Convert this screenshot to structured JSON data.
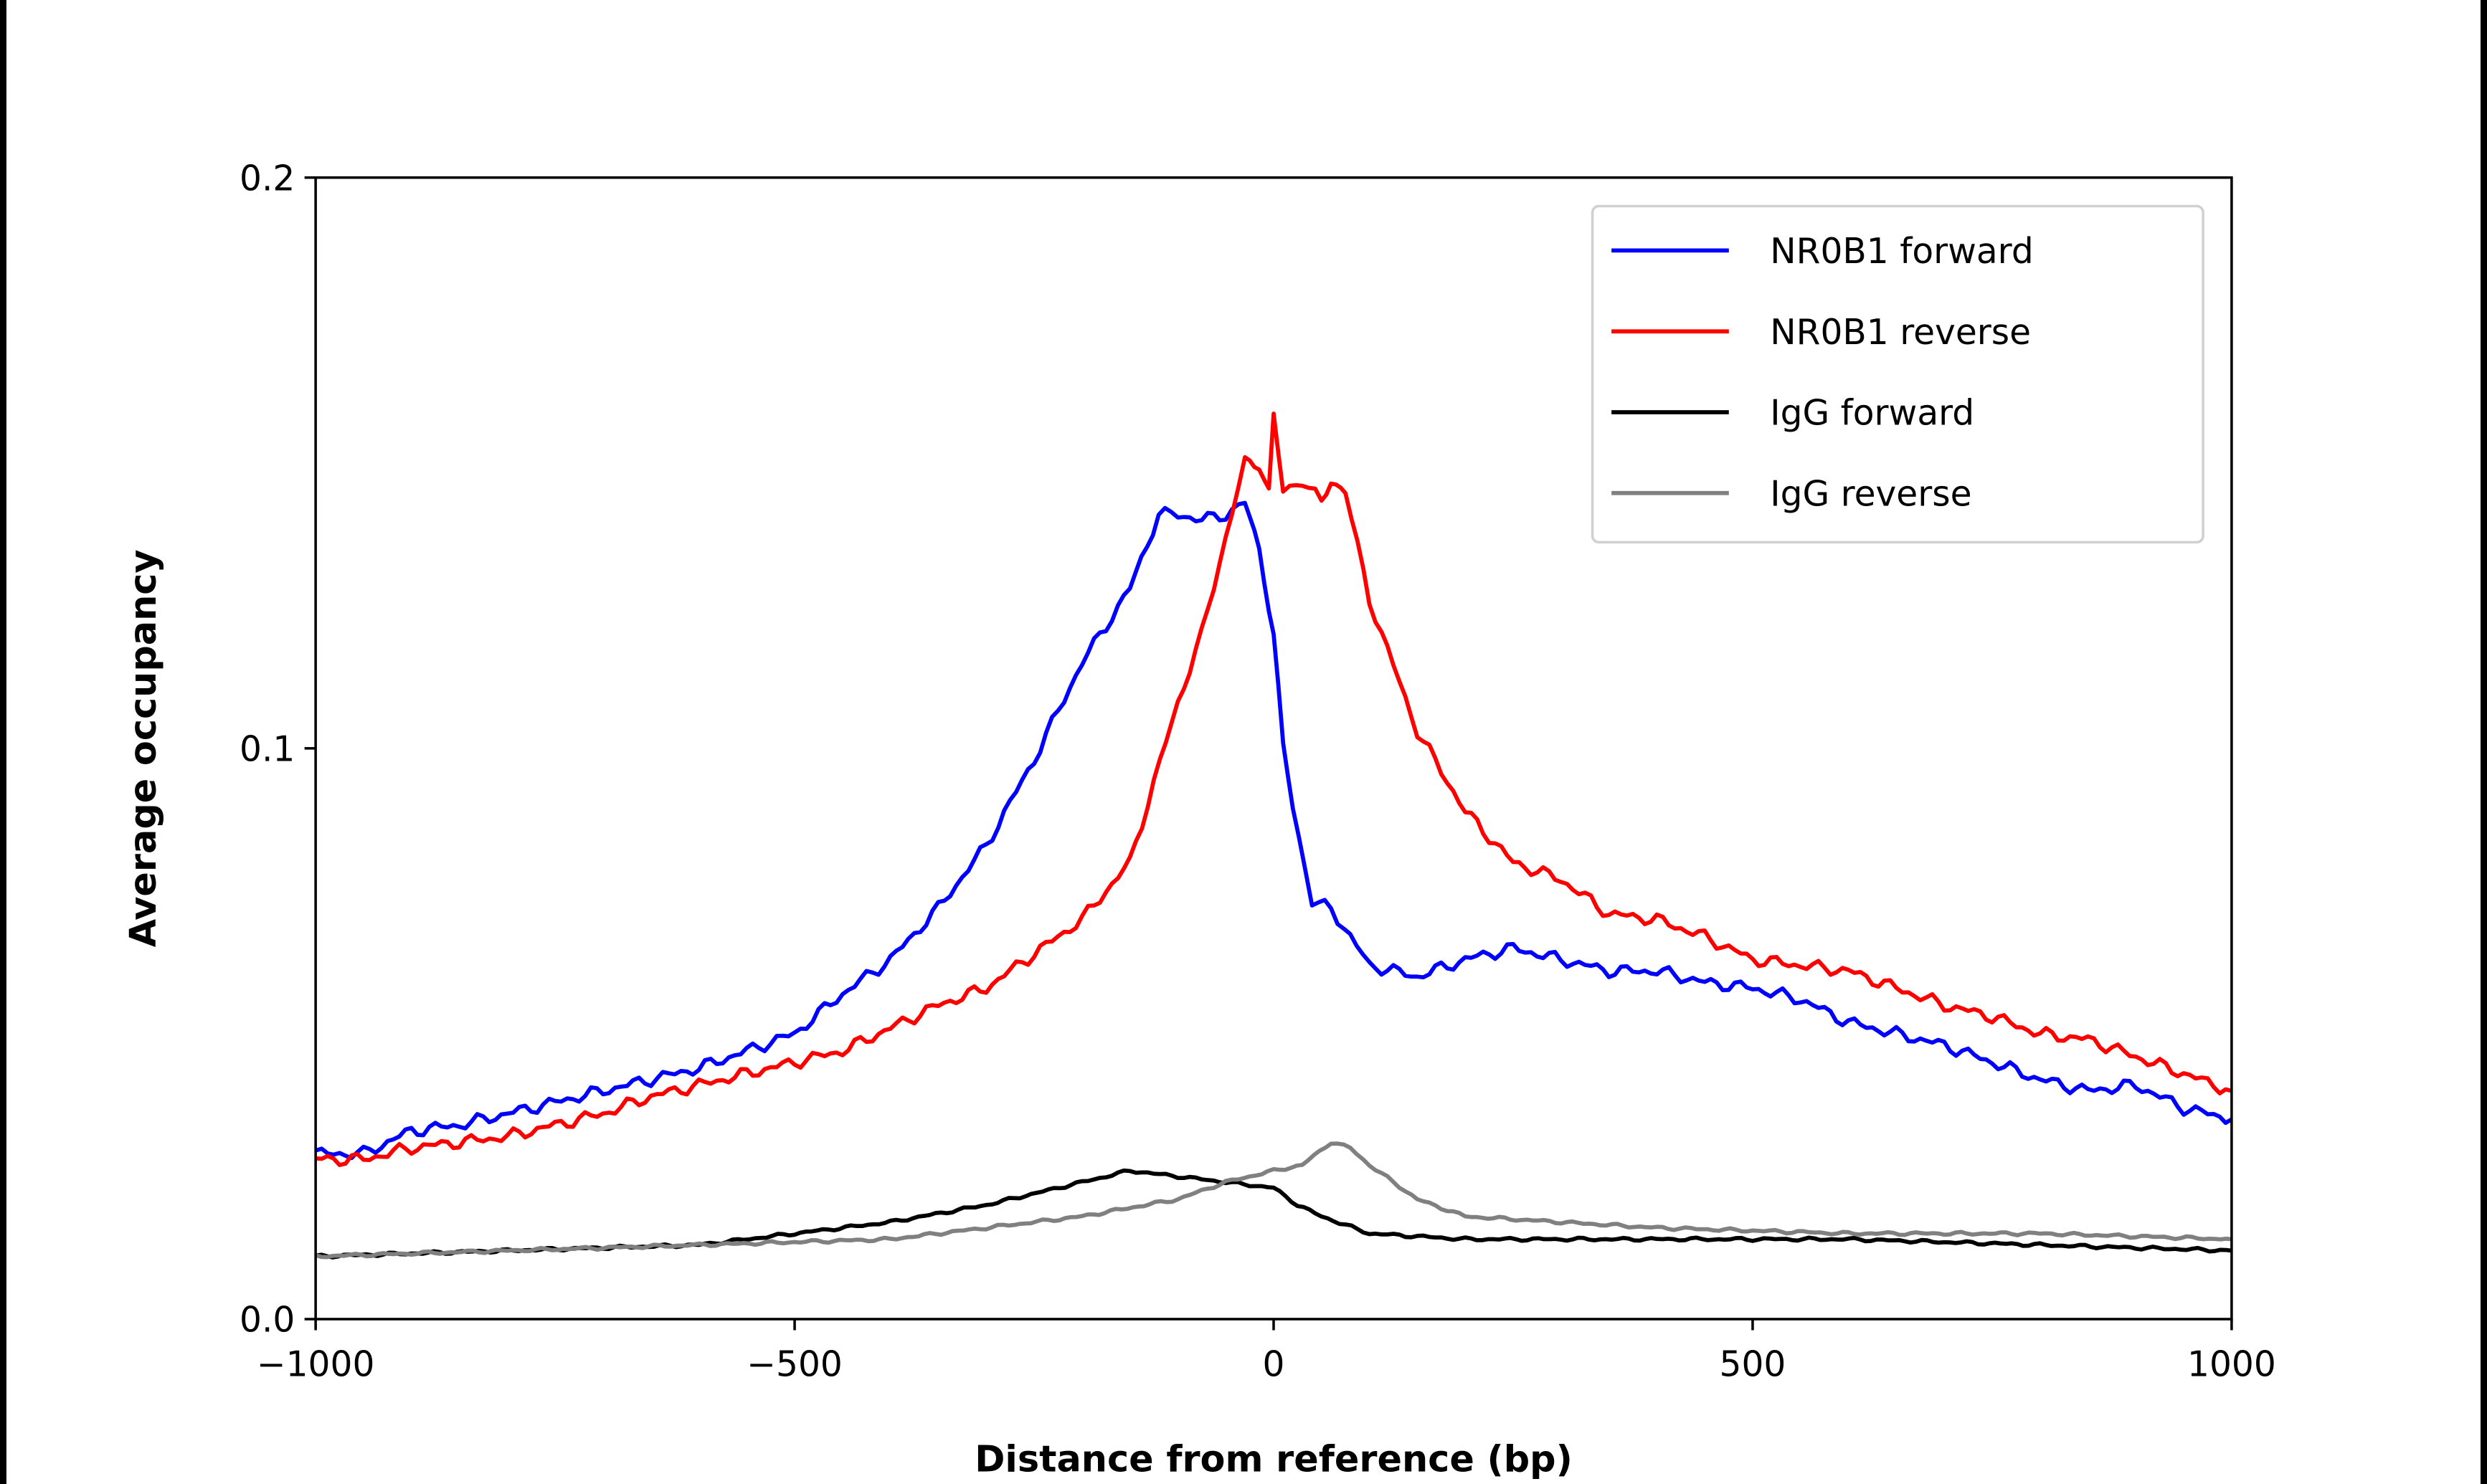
{
  "chart_data": {
    "type": "line",
    "title": "",
    "xlabel": "Distance from reference (bp)",
    "ylabel": "Average occupancy",
    "xlim": [
      -1000,
      1000
    ],
    "ylim": [
      0,
      0.2
    ],
    "xticks": [
      -1000,
      -500,
      0,
      500,
      1000
    ],
    "xtick_labels": [
      "−1000",
      "−500",
      "0",
      "500",
      "1000"
    ],
    "yticks": [
      0,
      0.1,
      0.2
    ],
    "ytick_labels": [
      "0.0",
      "0.1",
      "0.2"
    ],
    "grid": false,
    "legend_position": "top-right",
    "series": [
      {
        "name": "NR0B1 forward",
        "color": "#0000ff",
        "x": [
          -1000,
          -950,
          -900,
          -850,
          -800,
          -750,
          -700,
          -650,
          -600,
          -550,
          -500,
          -450,
          -400,
          -350,
          -300,
          -250,
          -200,
          -150,
          -120,
          -100,
          -75,
          -50,
          -30,
          -15,
          0,
          10,
          20,
          40,
          60,
          80,
          100,
          150,
          200,
          250,
          300,
          350,
          400,
          450,
          500,
          550,
          600,
          650,
          700,
          750,
          800,
          850,
          900,
          950,
          1000
        ],
        "y": [
          0.029,
          0.029,
          0.033,
          0.034,
          0.036,
          0.038,
          0.04,
          0.042,
          0.044,
          0.047,
          0.05,
          0.057,
          0.063,
          0.072,
          0.083,
          0.098,
          0.115,
          0.128,
          0.141,
          0.141,
          0.14,
          0.141,
          0.143,
          0.135,
          0.12,
          0.1,
          0.09,
          0.073,
          0.072,
          0.067,
          0.062,
          0.06,
          0.063,
          0.065,
          0.063,
          0.061,
          0.061,
          0.059,
          0.058,
          0.056,
          0.052,
          0.05,
          0.048,
          0.045,
          0.042,
          0.04,
          0.041,
          0.037,
          0.035
        ]
      },
      {
        "name": "NR0B1 reverse",
        "color": "#ff0000",
        "x": [
          -1000,
          -950,
          -900,
          -850,
          -800,
          -750,
          -700,
          -650,
          -600,
          -550,
          -500,
          -450,
          -400,
          -350,
          -300,
          -250,
          -200,
          -150,
          -100,
          -75,
          -50,
          -30,
          -15,
          -5,
          0,
          10,
          30,
          50,
          60,
          75,
          100,
          150,
          200,
          250,
          300,
          350,
          400,
          450,
          500,
          550,
          600,
          650,
          700,
          750,
          800,
          850,
          900,
          950,
          1000
        ],
        "y": [
          0.028,
          0.028,
          0.03,
          0.031,
          0.032,
          0.034,
          0.036,
          0.039,
          0.041,
          0.043,
          0.045,
          0.047,
          0.051,
          0.055,
          0.058,
          0.064,
          0.07,
          0.08,
          0.108,
          0.12,
          0.137,
          0.15,
          0.15,
          0.145,
          0.158,
          0.145,
          0.147,
          0.143,
          0.147,
          0.145,
          0.126,
          0.103,
          0.089,
          0.08,
          0.077,
          0.071,
          0.07,
          0.067,
          0.063,
          0.062,
          0.061,
          0.058,
          0.055,
          0.053,
          0.05,
          0.049,
          0.046,
          0.043,
          0.04
        ]
      },
      {
        "name": "IgG forward",
        "color": "#000000",
        "x": [
          -1000,
          -900,
          -800,
          -700,
          -600,
          -500,
          -400,
          -300,
          -200,
          -150,
          -100,
          -50,
          0,
          25,
          50,
          100,
          150,
          200,
          300,
          400,
          500,
          600,
          700,
          800,
          900,
          1000
        ],
        "y": [
          0.011,
          0.0115,
          0.012,
          0.0125,
          0.013,
          0.015,
          0.017,
          0.02,
          0.024,
          0.026,
          0.025,
          0.024,
          0.023,
          0.02,
          0.018,
          0.015,
          0.0145,
          0.014,
          0.014,
          0.014,
          0.014,
          0.014,
          0.0135,
          0.013,
          0.0125,
          0.012
        ]
      },
      {
        "name": "IgG reverse",
        "color": "#808080",
        "x": [
          -1000,
          -900,
          -800,
          -700,
          -600,
          -500,
          -400,
          -300,
          -200,
          -100,
          -50,
          0,
          30,
          60,
          80,
          100,
          150,
          200,
          300,
          400,
          500,
          600,
          700,
          800,
          900,
          1000
        ],
        "y": [
          0.011,
          0.0115,
          0.012,
          0.0125,
          0.013,
          0.0135,
          0.014,
          0.016,
          0.018,
          0.021,
          0.024,
          0.026,
          0.027,
          0.031,
          0.03,
          0.027,
          0.021,
          0.018,
          0.017,
          0.016,
          0.0155,
          0.015,
          0.015,
          0.015,
          0.0145,
          0.014
        ]
      }
    ]
  }
}
